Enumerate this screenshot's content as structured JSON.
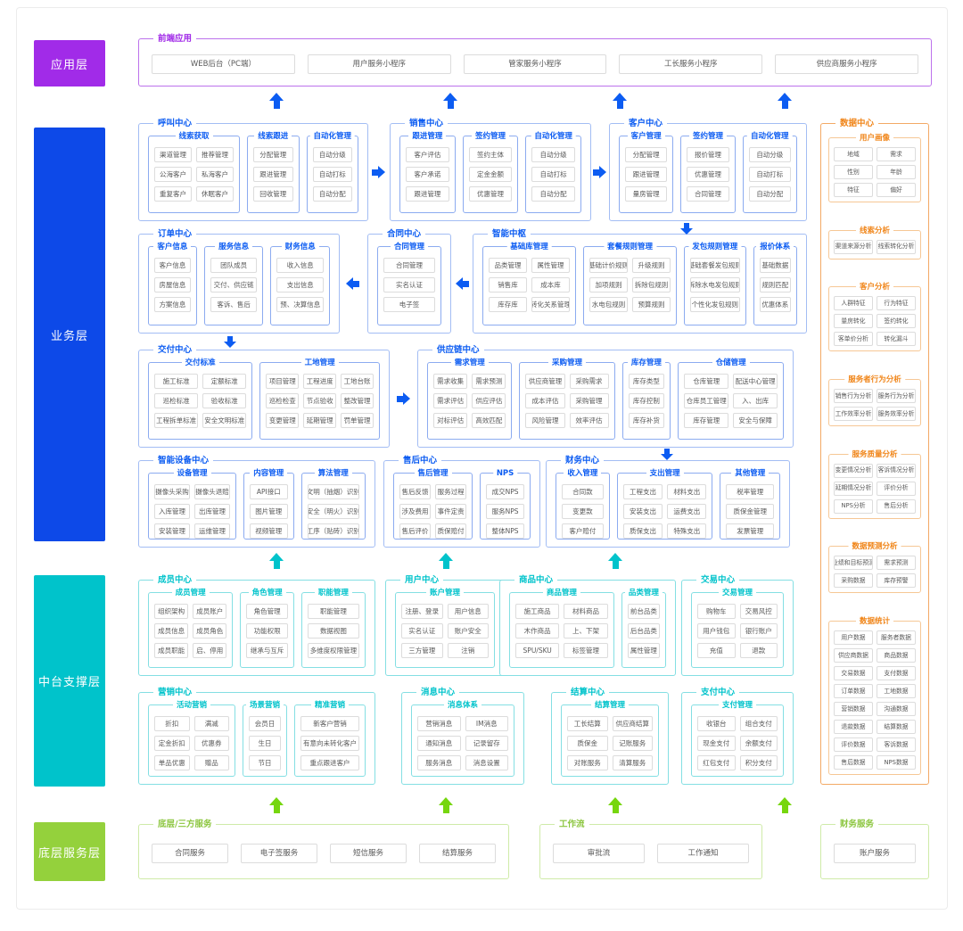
{
  "colors": {
    "app_accent": "#a12be8",
    "business_accent": "#0c5cf2",
    "middle_accent": "#00c3cb",
    "bottom_accent": "#8cc63f",
    "bottom_arrow": "#76d60e",
    "data_accent": "#f08519"
  },
  "layers": [
    {
      "label": "应用层",
      "color": "#a12be8"
    },
    {
      "label": "业务层",
      "color": "#0d49e8"
    },
    {
      "label": "中台支撑层",
      "color": "#00c3cb"
    },
    {
      "label": "底层服务层",
      "color": "#94d13c"
    }
  ],
  "frontend": {
    "title": "前端应用",
    "cols": 5,
    "items": [
      "WEB后台（PC端）",
      "用户服务小程序",
      "管家服务小程序",
      "工长服务小程序",
      "供应商服务小程序"
    ]
  },
  "business": {
    "centers": [
      {
        "title": "呼叫中心",
        "groups": [
          {
            "title": "线索获取",
            "cols": 2,
            "items": [
              "渠道管理",
              "推荐管理",
              "公海客户",
              "私海客户",
              "重复客户",
              "休眠客户"
            ]
          },
          {
            "title": "线索跟进",
            "cols": 1,
            "items": [
              "分配管理",
              "跟进管理",
              "回收管理"
            ]
          },
          {
            "title": "自动化管理",
            "cols": 1,
            "items": [
              "自动分级",
              "自动打标",
              "自动分配"
            ]
          }
        ]
      },
      {
        "title": "销售中心",
        "groups": [
          {
            "title": "跟进管理",
            "cols": 1,
            "items": [
              "客户评估",
              "客户承诺",
              "跟进管理"
            ]
          },
          {
            "title": "签约管理",
            "cols": 1,
            "items": [
              "签约主体",
              "定金金额",
              "优惠管理"
            ]
          },
          {
            "title": "自动化管理",
            "cols": 1,
            "items": [
              "自动分级",
              "自动打标",
              "自动分配"
            ]
          }
        ]
      },
      {
        "title": "客户中心",
        "groups": [
          {
            "title": "客户管理",
            "cols": 1,
            "items": [
              "分配管理",
              "跟进管理",
              "量房管理"
            ]
          },
          {
            "title": "签约管理",
            "cols": 1,
            "items": [
              "报价管理",
              "优惠管理",
              "合同管理"
            ]
          },
          {
            "title": "自动化管理",
            "cols": 1,
            "items": [
              "自动分级",
              "自动打标",
              "自动分配"
            ]
          }
        ]
      },
      {
        "title": "订单中心",
        "groups": [
          {
            "title": "客户信息",
            "cols": 1,
            "items": [
              "客户信息",
              "房屋信息",
              "方案信息"
            ]
          },
          {
            "title": "服务信息",
            "cols": 1,
            "items": [
              "团队成员",
              "交付、供应链",
              "客诉、售后"
            ]
          },
          {
            "title": "财务信息",
            "cols": 1,
            "items": [
              "收入信息",
              "支出信息",
              "预、决算信息"
            ]
          }
        ]
      },
      {
        "title": "合同中心",
        "groups": [
          {
            "title": "合同管理",
            "cols": 1,
            "items": [
              "合同管理",
              "实名认证",
              "电子签"
            ]
          }
        ]
      },
      {
        "title": "智能中枢",
        "groups": [
          {
            "title": "基础库管理",
            "cols": 2,
            "items": [
              "品类管理",
              "属性管理",
              "销售库",
              "成本库",
              "库存库",
              "转化关系管理"
            ]
          },
          {
            "title": "套餐规则管理",
            "cols": 2,
            "items": [
              "基础计价规则",
              "升级规则",
              "加项规则",
              "拆除包规则",
              "水电包规则",
              "预算规则"
            ]
          },
          {
            "title": "发包规则管理",
            "cols": 1,
            "items": [
              "基础套餐发包规则",
              "拆除水电发包规则",
              "个性化发包规则"
            ]
          },
          {
            "title": "报价体系",
            "cols": 1,
            "items": [
              "基础数据",
              "规则匹配",
              "优惠体系"
            ]
          }
        ]
      },
      {
        "title": "交付中心",
        "groups": [
          {
            "title": "交付标准",
            "cols": 2,
            "items": [
              "施工标准",
              "定额标准",
              "巡检标准",
              "验收标准",
              "工程拆单标准",
              "安全文明标准"
            ]
          },
          {
            "title": "工地管理",
            "cols": 3,
            "items": [
              "项目管理",
              "工程进度",
              "工地台账",
              "巡检检查",
              "节点验收",
              "整改管理",
              "变更管理",
              "延期管理",
              "罚单管理"
            ]
          }
        ]
      },
      {
        "title": "供应链中心",
        "groups": [
          {
            "title": "需求管理",
            "cols": 2,
            "items": [
              "需求收集",
              "需求预测",
              "需求评估",
              "供应评估",
              "对标评估",
              "高效匹配"
            ]
          },
          {
            "title": "采购管理",
            "cols": 2,
            "items": [
              "供应商管理",
              "采购需求",
              "成本评估",
              "采购管理",
              "风险管理",
              "效率评估"
            ]
          },
          {
            "title": "库存管理",
            "cols": 1,
            "items": [
              "库存类型",
              "库存控制",
              "库存补货"
            ]
          },
          {
            "title": "仓储管理",
            "cols": 2,
            "items": [
              "仓库管理",
              "配送中心管理",
              "仓库员工管理",
              "入、出库",
              "库存管理",
              "安全与保障"
            ]
          }
        ]
      },
      {
        "title": "智能设备中心",
        "groups": [
          {
            "title": "设备管理",
            "cols": 2,
            "items": [
              "摄像头采购",
              "摄像头退赔",
              "入库管理",
              "出库管理",
              "安装管理",
              "运维管理"
            ]
          },
          {
            "title": "内容管理",
            "cols": 1,
            "items": [
              "API接口",
              "图片管理",
              "视频管理"
            ]
          },
          {
            "title": "算法管理",
            "cols": 1,
            "items": [
              "文明（抽烟）识别",
              "安全（明火）识别",
              "工序（贴砖）识别"
            ]
          }
        ]
      },
      {
        "title": "售后中心",
        "groups": [
          {
            "title": "售后管理",
            "cols": 2,
            "items": [
              "售后反馈",
              "服务过程",
              "涉及费用",
              "事件定责",
              "售后评价",
              "质保赔付"
            ]
          },
          {
            "title": "NPS",
            "cols": 1,
            "items": [
              "成交NPS",
              "服务NPS",
              "整体NPS"
            ]
          }
        ]
      },
      {
        "title": "财务中心",
        "groups": [
          {
            "title": "收入管理",
            "cols": 1,
            "items": [
              "合同款",
              "变更款",
              "客户赔付"
            ]
          },
          {
            "title": "支出管理",
            "cols": 2,
            "items": [
              "工程支出",
              "材料支出",
              "安装支出",
              "运费支出",
              "质保支出",
              "特殊支出"
            ]
          },
          {
            "title": "其他管理",
            "cols": 1,
            "items": [
              "税率管理",
              "质保金管理",
              "发票管理"
            ]
          }
        ]
      }
    ]
  },
  "middle": {
    "centers": [
      {
        "title": "成员中心",
        "groups": [
          {
            "title": "成员管理",
            "cols": 2,
            "items": [
              "组织架构",
              "成员账户",
              "成员信息",
              "成员角色",
              "成员职能",
              "启、停用"
            ]
          },
          {
            "title": "角色管理",
            "cols": 1,
            "items": [
              "角色管理",
              "功能权限",
              "继承与互斥"
            ]
          },
          {
            "title": "职能管理",
            "cols": 1,
            "items": [
              "职能管理",
              "数据视图",
              "多维度权限管理"
            ]
          }
        ]
      },
      {
        "title": "用户中心",
        "groups": [
          {
            "title": "账户管理",
            "cols": 2,
            "items": [
              "注册、登录",
              "用户信息",
              "实名认证",
              "账户安全",
              "三方管理",
              "注销"
            ]
          }
        ]
      },
      {
        "title": "商品中心",
        "groups": [
          {
            "title": "商品管理",
            "cols": 2,
            "items": [
              "施工商品",
              "材料商品",
              "木作商品",
              "上、下架",
              "SPU/SKU",
              "标签管理"
            ]
          },
          {
            "title": "品类管理",
            "cols": 1,
            "items": [
              "前台品类",
              "后台品类",
              "属性管理"
            ]
          }
        ]
      },
      {
        "title": "交易中心",
        "groups": [
          {
            "title": "交易管理",
            "cols": 2,
            "items": [
              "购物车",
              "交易风控",
              "用户钱包",
              "银行账户",
              "充值",
              "退款"
            ]
          }
        ]
      },
      {
        "title": "营销中心",
        "groups": [
          {
            "title": "活动营销",
            "cols": 2,
            "items": [
              "折扣",
              "满减",
              "定金折扣",
              "优惠券",
              "单品优惠",
              "赠品"
            ]
          },
          {
            "title": "场景营销",
            "cols": 1,
            "items": [
              "会员日",
              "生日",
              "节日"
            ]
          },
          {
            "title": "精准营销",
            "cols": 1,
            "items": [
              "新客户营销",
              "有意向未转化客户",
              "重点跟进客户"
            ]
          }
        ]
      },
      {
        "title": "消息中心",
        "groups": [
          {
            "title": "消息体系",
            "cols": 2,
            "items": [
              "营销消息",
              "IM消息",
              "通知消息",
              "记录留存",
              "服务消息",
              "消息设置"
            ]
          }
        ]
      },
      {
        "title": "结算中心",
        "groups": [
          {
            "title": "结算管理",
            "cols": 2,
            "items": [
              "工长结算",
              "供应商结算",
              "质保金",
              "记账服务",
              "对账服务",
              "清算服务"
            ]
          }
        ]
      },
      {
        "title": "支付中心",
        "groups": [
          {
            "title": "支付管理",
            "cols": 2,
            "items": [
              "收银台",
              "组合支付",
              "现金支付",
              "余额支付",
              "红包支付",
              "积分支付"
            ]
          }
        ]
      }
    ]
  },
  "data_center": {
    "title": "数据中心",
    "groups": [
      {
        "title": "用户画像",
        "cols": 2,
        "items": [
          "地域",
          "需求",
          "性别",
          "年龄",
          "特征",
          "偏好"
        ]
      },
      {
        "title": "线索分析",
        "cols": 2,
        "items": [
          "渠道来源分析",
          "线索转化分析"
        ]
      },
      {
        "title": "客户分析",
        "cols": 2,
        "items": [
          "人群特征",
          "行为特征",
          "量房转化",
          "签约转化",
          "客单价分析",
          "转化漏斗"
        ]
      },
      {
        "title": "服务者行为分析",
        "cols": 2,
        "items": [
          "销售行为分析",
          "服务行为分析",
          "工作效率分析",
          "服务效率分析"
        ]
      },
      {
        "title": "服务质量分析",
        "cols": 2,
        "items": [
          "变更情况分析",
          "客诉情况分析",
          "延期情况分析",
          "评价分析",
          "NPS分析",
          "售后分析"
        ]
      },
      {
        "title": "数据预测分析",
        "cols": 2,
        "items": [
          "业绩和目标预测",
          "需求预测",
          "采购数据",
          "库存预警"
        ]
      },
      {
        "title": "数据统计",
        "cols": 2,
        "items": [
          "用户数据",
          "服务者数据",
          "供应商数据",
          "商品数据",
          "交易数据",
          "支付数据",
          "订单数据",
          "工地数据",
          "营销数据",
          "沟通数据",
          "退款数据",
          "结算数据",
          "评价数据",
          "客诉数据",
          "售后数据",
          "NPS数据"
        ]
      }
    ]
  },
  "bottom": {
    "sections": [
      {
        "title": "底层/三方服务",
        "cols": 4,
        "items": [
          "合同服务",
          "电子签服务",
          "短信服务",
          "结算服务"
        ]
      },
      {
        "title": "工作流",
        "cols": 2,
        "items": [
          "审批流",
          "工作通知"
        ]
      },
      {
        "title": "财务服务",
        "cols": 1,
        "items": [
          "账户服务"
        ]
      }
    ]
  }
}
